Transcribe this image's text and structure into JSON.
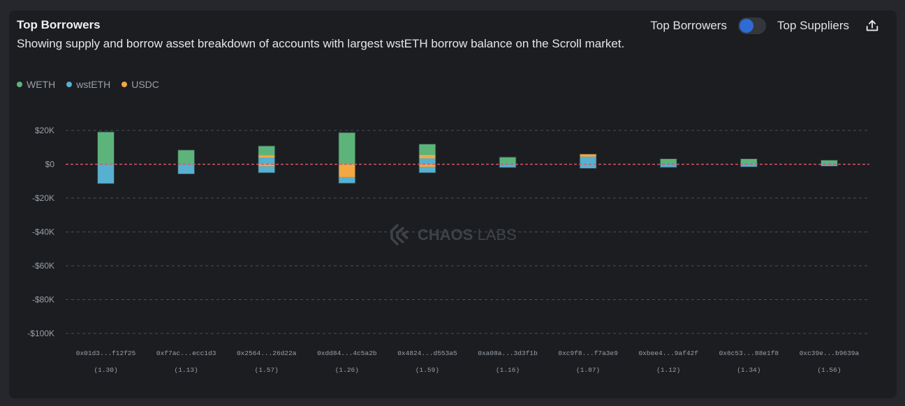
{
  "header": {
    "title": "Top Borrowers",
    "subtitle": "Showing supply and borrow asset breakdown of accounts with largest wstETH borrow balance on the Scroll market."
  },
  "controls": {
    "left_label": "Top Borrowers",
    "right_label": "Top Suppliers",
    "toggle_state": "Top Borrowers",
    "export_icon": "share-upload-icon"
  },
  "watermark": {
    "bold": "CHAOS",
    "light": " LABS"
  },
  "colors": {
    "WETH": "#5db47a",
    "wstETH": "#57b0d0",
    "USDC": "#f2a944",
    "zero_line": "#d9546a",
    "grid": "#4a4e54"
  },
  "chart_data": {
    "type": "bar",
    "stacked": true,
    "title": "Top Borrowers",
    "xlabel": "",
    "ylabel": "",
    "ylim": [
      -100000,
      20000
    ],
    "yticks": [
      20000,
      0,
      -20000,
      -40000,
      -60000,
      -80000,
      -100000
    ],
    "ytick_labels": [
      "$20K",
      "$0",
      "-$20K",
      "-$40K",
      "-$60K",
      "-$80K",
      "-$100K"
    ],
    "grid": true,
    "legend": {
      "placement": "top-left",
      "entries": [
        "WETH",
        "wstETH",
        "USDC"
      ]
    },
    "categories": [
      "0x01d3...f12f25",
      "0xf7ac...ecc1d3",
      "0x2564...26d22a",
      "0xdd84...4c5a2b",
      "0x4824...d553a5",
      "0xa08a...3d3f1b",
      "0xc9f8...f7a3e9",
      "0xbee4...9af42f",
      "0x6c53...88e1f8",
      "0xc39e...b9639a"
    ],
    "health_factors": [
      "(1.30)",
      "(1.13)",
      "(1.57)",
      "(1.26)",
      "(1.59)",
      "(1.16)",
      "(1.87)",
      "(1.12)",
      "(1.34)",
      "(1.56)"
    ],
    "supply_series": [
      {
        "name": "wstETH",
        "values": [
          0,
          0,
          3900,
          0,
          3500,
          0,
          4500,
          0,
          0,
          0
        ]
      },
      {
        "name": "USDC",
        "values": [
          0,
          0,
          1600,
          0,
          2100,
          0,
          1600,
          0,
          0,
          0
        ]
      },
      {
        "name": "WETH",
        "values": [
          19200,
          8500,
          5400,
          18800,
          6400,
          4300,
          0,
          3300,
          3300,
          2500
        ]
      }
    ],
    "borrow_series": [
      {
        "name": "USDC",
        "values": [
          0,
          0,
          -1200,
          -7600,
          -1600,
          0,
          0,
          0,
          0,
          0
        ]
      },
      {
        "name": "wstETH",
        "values": [
          -11500,
          -5800,
          -3900,
          -3700,
          -3500,
          -2000,
          -2500,
          -1900,
          -1600,
          -1200
        ]
      }
    ]
  }
}
